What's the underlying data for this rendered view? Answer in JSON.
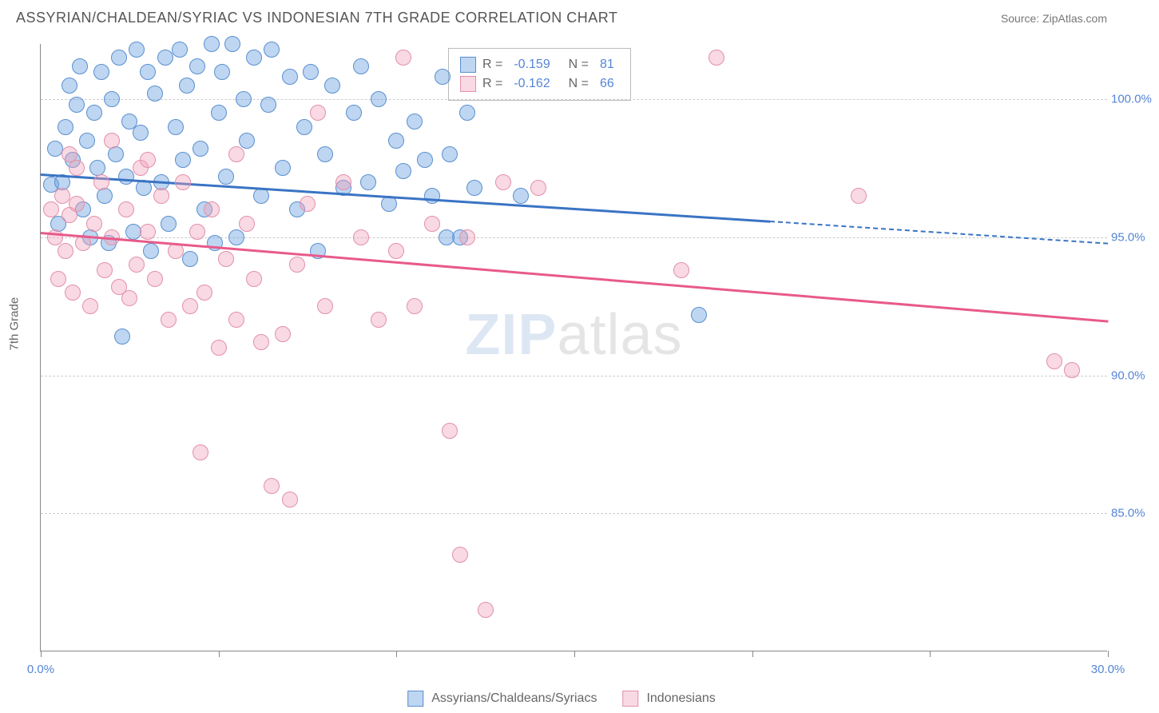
{
  "title": "ASSYRIAN/CHALDEAN/SYRIAC VS INDONESIAN 7TH GRADE CORRELATION CHART",
  "source": "Source: ZipAtlas.com",
  "ylabel": "7th Grade",
  "watermark_zip": "ZIP",
  "watermark_atlas": "atlas",
  "xlim": [
    0,
    30
  ],
  "ylim": [
    80,
    102
  ],
  "xticks": [
    {
      "pos": 0,
      "label": "0.0%"
    },
    {
      "pos": 5,
      "label": ""
    },
    {
      "pos": 10,
      "label": ""
    },
    {
      "pos": 15,
      "label": ""
    },
    {
      "pos": 20,
      "label": ""
    },
    {
      "pos": 25,
      "label": ""
    },
    {
      "pos": 30,
      "label": "30.0%"
    }
  ],
  "yticks": [
    {
      "pos": 85,
      "label": "85.0%"
    },
    {
      "pos": 90,
      "label": "90.0%"
    },
    {
      "pos": 95,
      "label": "95.0%"
    },
    {
      "pos": 100,
      "label": "100.0%"
    }
  ],
  "series": [
    {
      "name": "Assyrians/Chaldeans/Syriacs",
      "fill": "rgba(110,165,225,0.45)",
      "stroke": "#5a8fd0",
      "line_color": "#3a74c4",
      "R": "-0.159",
      "N": "81",
      "trend": {
        "x1": 0,
        "y1": 97.3,
        "x2": 20.5,
        "y2": 95.6
      },
      "trend_dash": {
        "x1": 20.5,
        "y1": 95.6,
        "x2": 30,
        "y2": 94.8
      },
      "points": [
        [
          0.3,
          96.9
        ],
        [
          0.4,
          98.2
        ],
        [
          0.5,
          95.5
        ],
        [
          0.6,
          97.0
        ],
        [
          0.7,
          99.0
        ],
        [
          0.8,
          100.5
        ],
        [
          0.9,
          97.8
        ],
        [
          1.0,
          99.8
        ],
        [
          1.1,
          101.2
        ],
        [
          1.2,
          96.0
        ],
        [
          1.3,
          98.5
        ],
        [
          1.4,
          95.0
        ],
        [
          1.5,
          99.5
        ],
        [
          1.6,
          97.5
        ],
        [
          1.7,
          101.0
        ],
        [
          1.8,
          96.5
        ],
        [
          1.9,
          94.8
        ],
        [
          2.0,
          100.0
        ],
        [
          2.1,
          98.0
        ],
        [
          2.2,
          101.5
        ],
        [
          2.3,
          91.4
        ],
        [
          2.4,
          97.2
        ],
        [
          2.5,
          99.2
        ],
        [
          2.6,
          95.2
        ],
        [
          2.7,
          101.8
        ],
        [
          2.8,
          98.8
        ],
        [
          2.9,
          96.8
        ],
        [
          3.0,
          101.0
        ],
        [
          3.1,
          94.5
        ],
        [
          3.2,
          100.2
        ],
        [
          3.4,
          97.0
        ],
        [
          3.5,
          101.5
        ],
        [
          3.6,
          95.5
        ],
        [
          3.8,
          99.0
        ],
        [
          3.9,
          101.8
        ],
        [
          4.0,
          97.8
        ],
        [
          4.1,
          100.5
        ],
        [
          4.2,
          94.2
        ],
        [
          4.4,
          101.2
        ],
        [
          4.5,
          98.2
        ],
        [
          4.6,
          96.0
        ],
        [
          4.8,
          102.0
        ],
        [
          4.9,
          94.8
        ],
        [
          5.0,
          99.5
        ],
        [
          5.1,
          101.0
        ],
        [
          5.2,
          97.2
        ],
        [
          5.4,
          102.0
        ],
        [
          5.5,
          95.0
        ],
        [
          5.7,
          100.0
        ],
        [
          5.8,
          98.5
        ],
        [
          6.0,
          101.5
        ],
        [
          6.2,
          96.5
        ],
        [
          6.4,
          99.8
        ],
        [
          6.5,
          101.8
        ],
        [
          6.8,
          97.5
        ],
        [
          7.0,
          100.8
        ],
        [
          7.2,
          96.0
        ],
        [
          7.4,
          99.0
        ],
        [
          7.6,
          101.0
        ],
        [
          7.8,
          94.5
        ],
        [
          8.0,
          98.0
        ],
        [
          8.2,
          100.5
        ],
        [
          8.5,
          96.8
        ],
        [
          8.8,
          99.5
        ],
        [
          9.0,
          101.2
        ],
        [
          9.2,
          97.0
        ],
        [
          9.5,
          100.0
        ],
        [
          9.8,
          96.2
        ],
        [
          10.0,
          98.5
        ],
        [
          10.2,
          97.4
        ],
        [
          10.5,
          99.2
        ],
        [
          10.8,
          97.8
        ],
        [
          11.0,
          96.5
        ],
        [
          11.3,
          100.8
        ],
        [
          11.5,
          98.0
        ],
        [
          11.8,
          95.0
        ],
        [
          12.0,
          99.5
        ],
        [
          12.2,
          96.8
        ],
        [
          13.5,
          96.5
        ],
        [
          18.5,
          92.2
        ],
        [
          11.4,
          95.0
        ]
      ]
    },
    {
      "name": "Indonesians",
      "fill": "rgba(240,160,185,0.40)",
      "stroke": "#e290aa",
      "line_color": "#e85a8a",
      "R": "-0.162",
      "N": "66",
      "trend": {
        "x1": 0,
        "y1": 95.2,
        "x2": 30,
        "y2": 92.0
      },
      "points": [
        [
          0.3,
          96.0
        ],
        [
          0.4,
          95.0
        ],
        [
          0.5,
          93.5
        ],
        [
          0.6,
          96.5
        ],
        [
          0.7,
          94.5
        ],
        [
          0.8,
          95.8
        ],
        [
          0.9,
          93.0
        ],
        [
          1.0,
          96.2
        ],
        [
          1.2,
          94.8
        ],
        [
          1.4,
          92.5
        ],
        [
          1.5,
          95.5
        ],
        [
          1.7,
          97.0
        ],
        [
          1.8,
          93.8
        ],
        [
          2.0,
          95.0
        ],
        [
          2.2,
          93.2
        ],
        [
          2.4,
          96.0
        ],
        [
          2.5,
          92.8
        ],
        [
          2.7,
          94.0
        ],
        [
          2.8,
          97.5
        ],
        [
          3.0,
          95.2
        ],
        [
          3.2,
          93.5
        ],
        [
          3.4,
          96.5
        ],
        [
          3.6,
          92.0
        ],
        [
          3.8,
          94.5
        ],
        [
          4.0,
          97.0
        ],
        [
          4.2,
          92.5
        ],
        [
          4.4,
          95.2
        ],
        [
          4.5,
          87.2
        ],
        [
          4.6,
          93.0
        ],
        [
          4.8,
          96.0
        ],
        [
          5.0,
          91.0
        ],
        [
          5.2,
          94.2
        ],
        [
          5.5,
          92.0
        ],
        [
          5.8,
          95.5
        ],
        [
          6.0,
          93.5
        ],
        [
          6.2,
          91.2
        ],
        [
          6.5,
          86.0
        ],
        [
          6.8,
          91.5
        ],
        [
          7.0,
          85.5
        ],
        [
          7.2,
          94.0
        ],
        [
          7.5,
          96.2
        ],
        [
          7.8,
          99.5
        ],
        [
          8.0,
          92.5
        ],
        [
          8.5,
          97.0
        ],
        [
          9.0,
          95.0
        ],
        [
          9.5,
          92.0
        ],
        [
          10.0,
          94.5
        ],
        [
          10.2,
          101.5
        ],
        [
          10.5,
          92.5
        ],
        [
          11.0,
          95.5
        ],
        [
          11.5,
          88.0
        ],
        [
          11.8,
          83.5
        ],
        [
          12.0,
          95.0
        ],
        [
          12.5,
          81.5
        ],
        [
          13.0,
          97.0
        ],
        [
          14.0,
          96.8
        ],
        [
          18.0,
          93.8
        ],
        [
          19.0,
          101.5
        ],
        [
          23.0,
          96.5
        ],
        [
          28.5,
          90.5
        ],
        [
          29.0,
          90.2
        ],
        [
          5.5,
          98.0
        ],
        [
          3.0,
          97.8
        ],
        [
          1.0,
          97.5
        ],
        [
          2.0,
          98.5
        ],
        [
          0.8,
          98.0
        ]
      ]
    }
  ],
  "legend_bottom": [
    {
      "label": "Assyrians/Chaldeans/Syriacs",
      "fill": "rgba(110,165,225,0.45)",
      "stroke": "#5a8fd0"
    },
    {
      "label": "Indonesians",
      "fill": "rgba(240,160,185,0.40)",
      "stroke": "#e290aa"
    }
  ],
  "chart": {
    "background": "#ffffff",
    "grid_color": "#cccccc",
    "grid_dash": "4,4",
    "axis_color": "#888888",
    "marker_radius": 10,
    "marker_stroke_width": 1.2,
    "line_width": 2.5,
    "tick_font_color": "#5585d6",
    "tick_font_size": 15
  }
}
